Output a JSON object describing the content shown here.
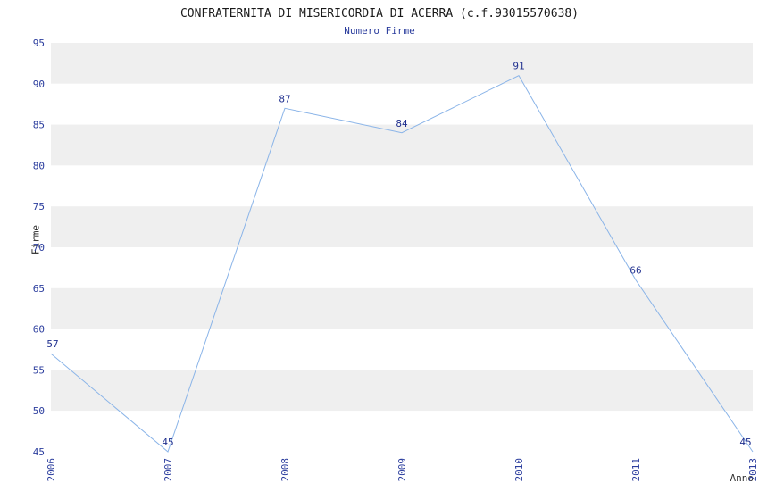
{
  "page": {
    "title": "CONFRATERNITA DI MISERICORDIA DI ACERRA (c.f.93015570638)",
    "subtitle": "Numero Firme"
  },
  "chart_data": {
    "type": "line",
    "title": "CONFRATERNITA DI MISERICORDIA DI ACERRA (c.f.93015570638)",
    "subtitle": "Numero Firme",
    "xlabel": "Anno",
    "ylabel": "Firme",
    "categories": [
      "2006",
      "2007",
      "2008",
      "2009",
      "2010",
      "2011",
      "2013"
    ],
    "values": [
      57,
      45,
      87,
      84,
      91,
      66,
      45
    ],
    "ylim": [
      45,
      95
    ],
    "ytick_step": 5,
    "yticks": [
      45,
      50,
      55,
      60,
      65,
      70,
      75,
      80,
      85,
      90,
      95
    ],
    "grid": "horizontal-bands",
    "legend_position": "none",
    "colors": {
      "line": "#8ab4e8",
      "band_gray": "#efefef",
      "band_white": "#ffffff",
      "axis_text": "#2c3e9e",
      "data_label": "#20308f",
      "title_text": "#1a1a1a",
      "axis_title_text": "#222222"
    }
  }
}
